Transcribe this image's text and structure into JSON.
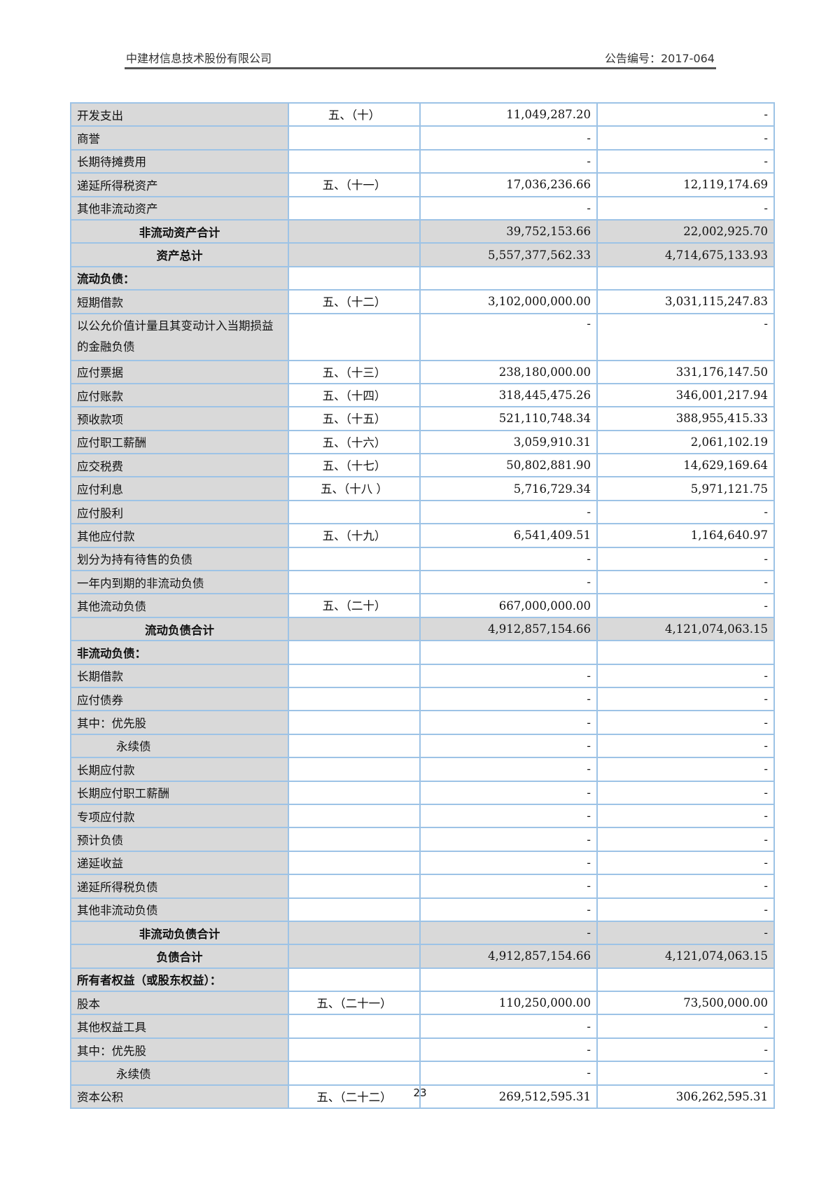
{
  "header": {
    "company": "中建材信息技术股份有限公司",
    "announcement_no": "公告编号：2017-064"
  },
  "colors": {
    "border": "#9dc3e6",
    "shade": "#d9d9d9"
  },
  "rows": [
    {
      "label": "开发支出",
      "note": "五、（十）",
      "current": "11,049,287.20",
      "prior": "-"
    },
    {
      "label": "商誉",
      "note": "",
      "current": "-",
      "prior": "-"
    },
    {
      "label": "长期待摊费用",
      "note": "",
      "current": "-",
      "prior": "-"
    },
    {
      "label": "递延所得税资产",
      "note": "五、（十一）",
      "current": "17,036,236.66",
      "prior": "12,119,174.69"
    },
    {
      "label": "其他非流动资产",
      "note": "",
      "current": "-",
      "prior": "-"
    },
    {
      "label": "非流动资产合计",
      "note": "",
      "current": "39,752,153.66",
      "prior": "22,002,925.70",
      "type": "total"
    },
    {
      "label": "资产总计",
      "note": "",
      "current": "5,557,377,562.33",
      "prior": "4,714,675,133.93",
      "type": "total"
    },
    {
      "label": "流动负债：",
      "note": "",
      "current": "",
      "prior": "",
      "type": "section"
    },
    {
      "label": "短期借款",
      "note": "五、（十二）",
      "current": "3,102,000,000.00",
      "prior": "3,031,115,247.83"
    },
    {
      "label": "以公允价值计量且其变动计入当期损益的金融负债",
      "note": "",
      "current": "-",
      "prior": "-",
      "type": "double"
    },
    {
      "label": "应付票据",
      "note": "五、（十三）",
      "current": "238,180,000.00",
      "prior": "331,176,147.50"
    },
    {
      "label": "应付账款",
      "note": "五、（十四）",
      "current": "318,445,475.26",
      "prior": "346,001,217.94"
    },
    {
      "label": "预收款项",
      "note": "五、（十五）",
      "current": "521,110,748.34",
      "prior": "388,955,415.33"
    },
    {
      "label": "应付职工薪酬",
      "note": "五、（十六）",
      "current": "3,059,910.31",
      "prior": "2,061,102.19"
    },
    {
      "label": "应交税费",
      "note": "五、（十七）",
      "current": "50,802,881.90",
      "prior": "14,629,169.64"
    },
    {
      "label": "应付利息",
      "note": "五、（十八 ）",
      "current": "5,716,729.34",
      "prior": "5,971,121.75"
    },
    {
      "label": "应付股利",
      "note": "",
      "current": "-",
      "prior": "-"
    },
    {
      "label": "其他应付款",
      "note": "五、（十九）",
      "current": "6,541,409.51",
      "prior": "1,164,640.97"
    },
    {
      "label": "划分为持有待售的负债",
      "note": "",
      "current": "-",
      "prior": "-"
    },
    {
      "label": "一年内到期的非流动负债",
      "note": "",
      "current": "-",
      "prior": "-"
    },
    {
      "label": "其他流动负债",
      "note": "五、（二十）",
      "current": "667,000,000.00",
      "prior": "-"
    },
    {
      "label": "流动负债合计",
      "note": "",
      "current": "4,912,857,154.66",
      "prior": "4,121,074,063.15",
      "type": "total"
    },
    {
      "label": "非流动负债：",
      "note": "",
      "current": "",
      "prior": "",
      "type": "section"
    },
    {
      "label": "长期借款",
      "note": "",
      "current": "-",
      "prior": "-"
    },
    {
      "label": "应付债券",
      "note": "",
      "current": "-",
      "prior": "-"
    },
    {
      "label": "其中：优先股",
      "note": "",
      "current": "-",
      "prior": "-"
    },
    {
      "label": "永续债",
      "note": "",
      "current": "-",
      "prior": "-",
      "type": "indent"
    },
    {
      "label": "长期应付款",
      "note": "",
      "current": "-",
      "prior": "-"
    },
    {
      "label": "长期应付职工薪酬",
      "note": "",
      "current": "-",
      "prior": "-"
    },
    {
      "label": "专项应付款",
      "note": "",
      "current": "-",
      "prior": "-"
    },
    {
      "label": "预计负债",
      "note": "",
      "current": "-",
      "prior": "-"
    },
    {
      "label": "递延收益",
      "note": "",
      "current": "-",
      "prior": "-"
    },
    {
      "label": "递延所得税负债",
      "note": "",
      "current": "-",
      "prior": "-"
    },
    {
      "label": "其他非流动负债",
      "note": "",
      "current": "-",
      "prior": "-"
    },
    {
      "label": "非流动负债合计",
      "note": "",
      "current": "-",
      "prior": "-",
      "type": "total"
    },
    {
      "label": "负债合计",
      "note": "",
      "current": "4,912,857,154.66",
      "prior": "4,121,074,063.15",
      "type": "total"
    },
    {
      "label": "所有者权益（或股东权益）：",
      "note": "",
      "current": "",
      "prior": "",
      "type": "section"
    },
    {
      "label": "股本",
      "note": "五、（二十一）",
      "current": "110,250,000.00",
      "prior": "73,500,000.00"
    },
    {
      "label": "其他权益工具",
      "note": "",
      "current": "-",
      "prior": "-"
    },
    {
      "label": "其中：优先股",
      "note": "",
      "current": "-",
      "prior": "-"
    },
    {
      "label": "永续债",
      "note": "",
      "current": "-",
      "prior": "-",
      "type": "indent"
    },
    {
      "label": "资本公积",
      "note": "五、（二十二）",
      "current": "269,512,595.31",
      "prior": "306,262,595.31"
    }
  ],
  "page_number": "23"
}
